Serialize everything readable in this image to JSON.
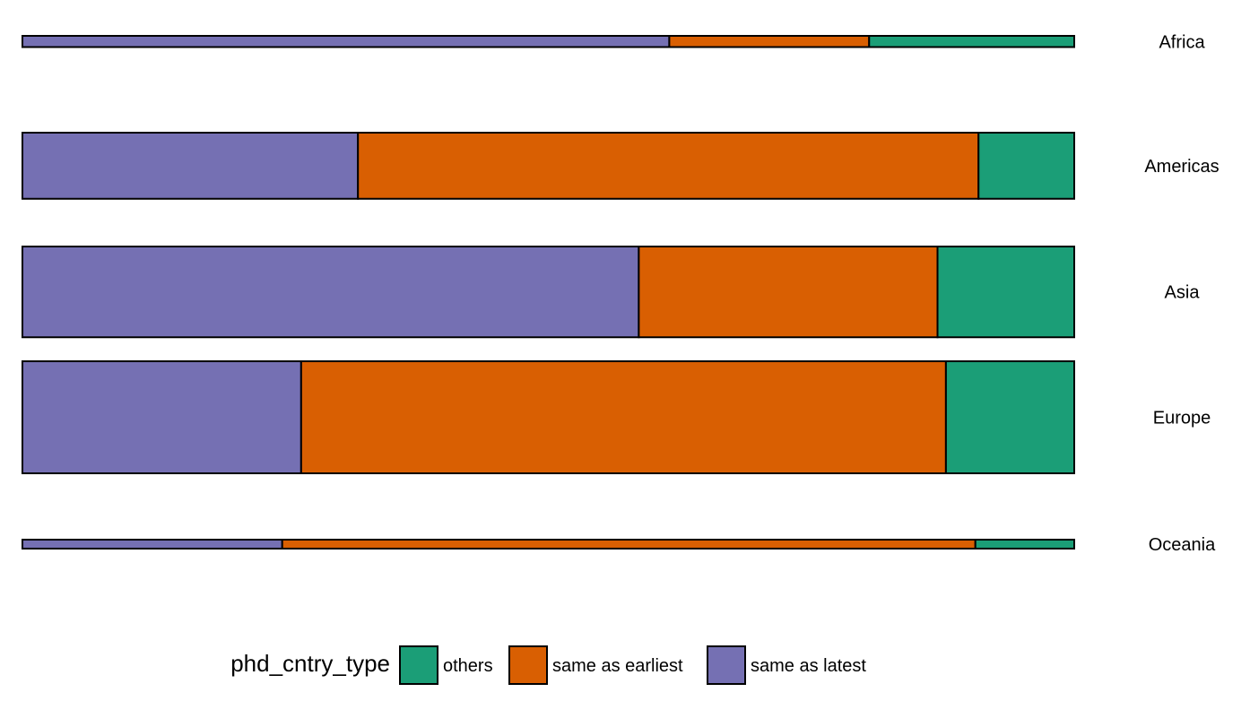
{
  "chart_data": {
    "type": "bar",
    "orientation": "horizontal",
    "stacked": "proportional",
    "grid": false,
    "legend_position": "bottom",
    "legend_title": "phd_cntry_type",
    "categories": [
      "Africa",
      "Americas",
      "Asia",
      "Europe",
      "Oceania"
    ],
    "category_relative_size": [
      0.1,
      0.59,
      0.81,
      1.0,
      0.08
    ],
    "series": [
      {
        "name": "same as latest",
        "color": "#7570b3",
        "values": [
          0.615,
          0.319,
          0.586,
          0.265,
          0.247
        ]
      },
      {
        "name": "same as earliest",
        "color": "#d95f02",
        "values": [
          0.19,
          0.59,
          0.284,
          0.613,
          0.659
        ]
      },
      {
        "name": "others",
        "color": "#1b9e77",
        "values": [
          0.195,
          0.091,
          0.13,
          0.122,
          0.094
        ]
      }
    ],
    "legend_entries": [
      {
        "label": "others",
        "color": "#1b9e77"
      },
      {
        "label": "same as earliest",
        "color": "#d95f02"
      },
      {
        "label": "same as latest",
        "color": "#7570b3"
      }
    ],
    "xlim": [
      0,
      1
    ]
  }
}
